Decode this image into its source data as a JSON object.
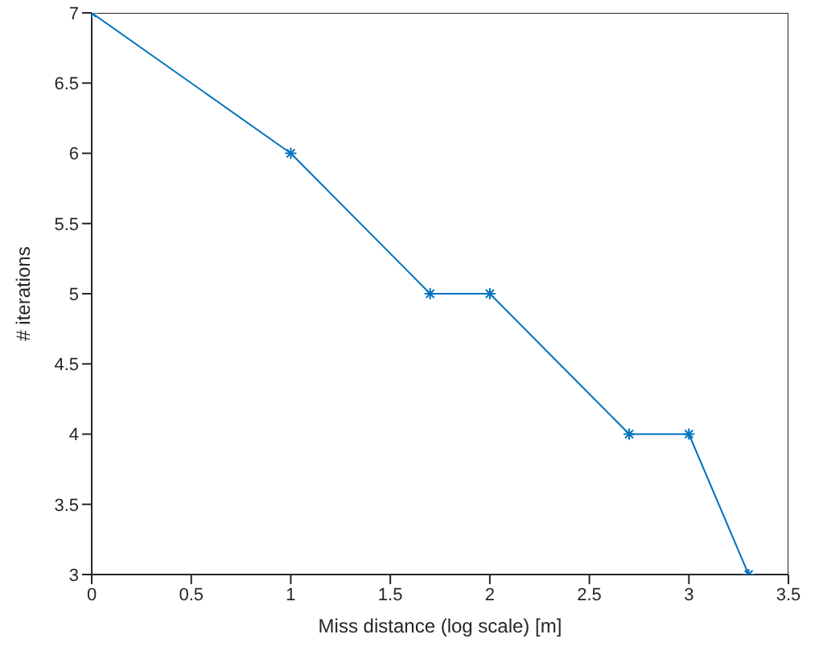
{
  "chart_data": {
    "type": "line",
    "xlabel": "Miss distance (log scale) [m]",
    "ylabel": "# iterations",
    "x": [
      0,
      1,
      1.7,
      2,
      2.7,
      3,
      3.3
    ],
    "series": [
      {
        "color": "#0072bd",
        "values": [
          7,
          6,
          5,
          5,
          4,
          4,
          3
        ]
      }
    ],
    "xlim": [
      0,
      3.5
    ],
    "xticks": [
      0,
      0.5,
      1,
      1.5,
      2,
      2.5,
      3,
      3.5
    ],
    "ylim": [
      3,
      7
    ],
    "yticks": [
      3,
      3.5,
      4,
      4.5,
      5,
      5.5,
      6,
      6.5,
      7
    ],
    "grid": false,
    "legend": false,
    "marker": "cross",
    "line_style": "solid"
  }
}
